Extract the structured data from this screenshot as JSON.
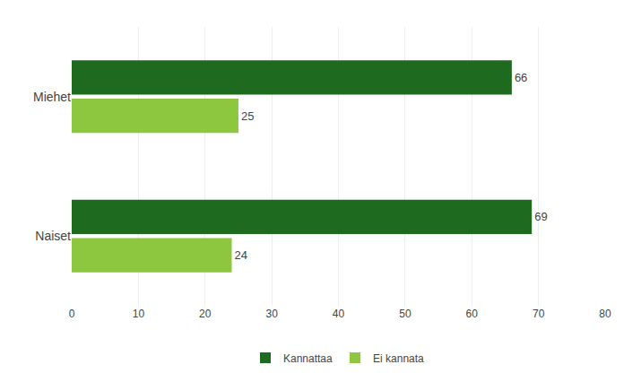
{
  "chart_data": {
    "type": "bar",
    "orientation": "horizontal",
    "categories": [
      "Naiset",
      "Miehet"
    ],
    "series": [
      {
        "name": "Kannattaa",
        "color": "#1e6b20",
        "values": [
          69,
          66
        ]
      },
      {
        "name": "Ei kannata",
        "color": "#8dc63f",
        "values": [
          24,
          25
        ]
      }
    ],
    "xlim": [
      0,
      80
    ],
    "xticks": [
      0,
      10,
      20,
      30,
      40,
      50,
      60,
      70,
      80
    ],
    "grid": true,
    "legend": "bottom",
    "data_labels": true
  }
}
